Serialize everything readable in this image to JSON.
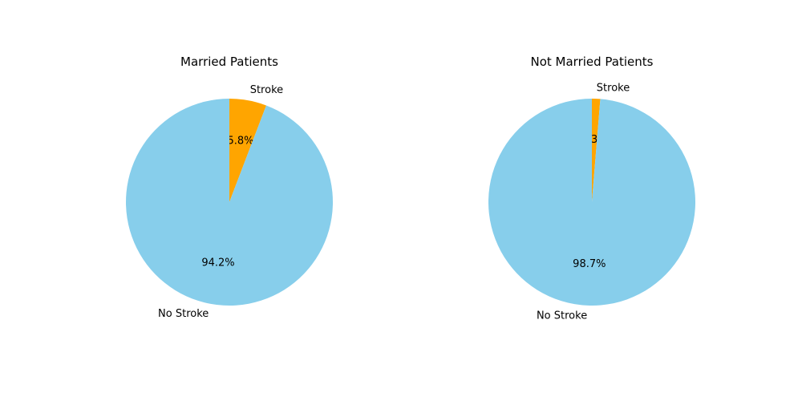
{
  "chart_data": [
    {
      "type": "pie",
      "title": "Married Patients",
      "labels": [
        "Stroke",
        "No Stroke"
      ],
      "values": [
        5.8,
        94.2
      ],
      "value_labels": [
        "5.8%",
        "94.2%"
      ],
      "colors": [
        "#FFA500",
        "#87CEEB"
      ],
      "start_angle": 90,
      "direction": "clockwise"
    },
    {
      "type": "pie",
      "title": "Not Married Patients",
      "labels": [
        "Stroke",
        "No Stroke"
      ],
      "values": [
        1.3,
        98.7
      ],
      "value_labels": [
        "1.3%",
        "98.7%"
      ],
      "colors": [
        "#FFA500",
        "#87CEEB"
      ],
      "start_angle": 90,
      "direction": "clockwise"
    }
  ]
}
